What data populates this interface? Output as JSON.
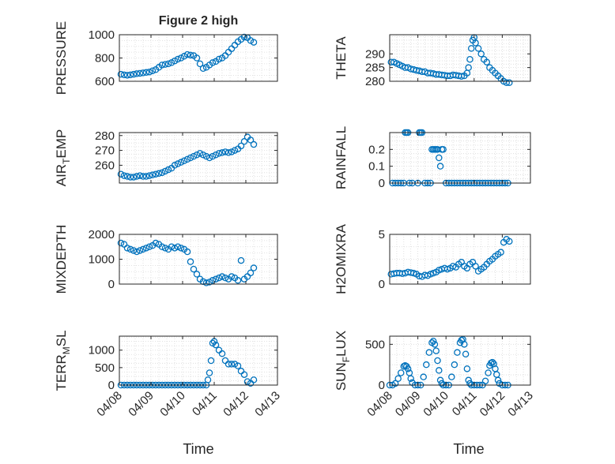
{
  "figure_title": "Figure 2 high",
  "colors": {
    "marker": "#0072BD",
    "axis": "#262626",
    "grid": "#d9d9d9",
    "background": "#ffffff"
  },
  "xaxis": {
    "label": "Time",
    "tick_labels": [
      "04/08",
      "04/09",
      "04/10",
      "04/11",
      "04/12",
      "04/13"
    ],
    "ticks": [
      8,
      9,
      10,
      11,
      12,
      13
    ],
    "range": [
      8,
      13
    ]
  },
  "chart_data": [
    {
      "type": "scatter",
      "title": "Figure 2 high",
      "ylabel": "PRESSURE",
      "ylim": [
        600,
        1000
      ],
      "yticks": [
        600,
        800,
        1000
      ],
      "grid": true,
      "x": [
        8.05,
        8.15,
        8.25,
        8.35,
        8.45,
        8.55,
        8.65,
        8.75,
        8.85,
        8.95,
        9.05,
        9.15,
        9.25,
        9.35,
        9.45,
        9.55,
        9.65,
        9.75,
        9.85,
        9.95,
        10.05,
        10.15,
        10.25,
        10.35,
        10.45,
        10.55,
        10.65,
        10.75,
        10.85,
        10.95,
        11.05,
        11.15,
        11.25,
        11.35,
        11.45,
        11.55,
        11.65,
        11.75,
        11.85,
        11.95,
        12.05,
        12.15,
        12.25
      ],
      "y": [
        660,
        655,
        652,
        655,
        660,
        665,
        668,
        672,
        676,
        680,
        690,
        700,
        720,
        740,
        745,
        750,
        760,
        775,
        790,
        800,
        815,
        830,
        825,
        820,
        800,
        750,
        710,
        720,
        740,
        760,
        770,
        790,
        800,
        820,
        850,
        880,
        910,
        940,
        960,
        980,
        975,
        950,
        935
      ]
    },
    {
      "type": "scatter",
      "ylabel": "THETA",
      "ylim": [
        280,
        297
      ],
      "yticks": [
        280,
        285,
        290
      ],
      "grid": true,
      "x": [
        8.05,
        8.15,
        8.25,
        8.35,
        8.45,
        8.55,
        8.65,
        8.75,
        8.85,
        8.95,
        9.05,
        9.15,
        9.25,
        9.35,
        9.45,
        9.55,
        9.65,
        9.75,
        9.85,
        9.95,
        10.05,
        10.15,
        10.25,
        10.35,
        10.45,
        10.55,
        10.65,
        10.75,
        10.8,
        10.85,
        10.9,
        10.95,
        11.0,
        11.05,
        11.15,
        11.25,
        11.35,
        11.45,
        11.55,
        11.65,
        11.75,
        11.85,
        11.95,
        12.05,
        12.15,
        12.25
      ],
      "y": [
        287,
        287,
        286.5,
        286,
        285.5,
        285,
        285,
        284.5,
        284.3,
        284,
        283.8,
        283.5,
        283.5,
        283,
        283,
        282.8,
        282.5,
        282.5,
        282.3,
        282.2,
        282,
        282,
        282.3,
        282.2,
        282,
        281.8,
        282,
        283,
        285,
        288,
        292,
        295,
        296,
        294,
        292,
        290,
        288,
        287,
        285,
        284,
        283,
        282,
        281,
        280,
        279.5,
        279.5
      ]
    },
    {
      "type": "scatter",
      "ylabel": "AIR_TEMP",
      "ylim": [
        248,
        282
      ],
      "yticks": [
        260,
        270,
        280
      ],
      "grid": true,
      "x": [
        8.05,
        8.15,
        8.25,
        8.35,
        8.45,
        8.55,
        8.65,
        8.75,
        8.85,
        8.95,
        9.05,
        9.15,
        9.25,
        9.35,
        9.45,
        9.55,
        9.65,
        9.75,
        9.85,
        9.95,
        10.05,
        10.15,
        10.25,
        10.35,
        10.45,
        10.55,
        10.65,
        10.75,
        10.85,
        10.95,
        11.05,
        11.15,
        11.25,
        11.35,
        11.45,
        11.55,
        11.65,
        11.75,
        11.85,
        11.95,
        12.05,
        12.15,
        12.25
      ],
      "y": [
        254,
        253,
        252.5,
        252,
        252,
        252.5,
        253,
        252.5,
        252.5,
        253,
        253.5,
        254,
        254.5,
        255,
        256,
        257,
        258,
        260,
        261,
        262,
        263,
        264,
        265,
        266,
        267,
        268,
        267,
        266,
        265,
        266,
        267,
        268,
        268.5,
        269,
        268.5,
        269,
        270,
        271,
        273,
        276,
        279,
        277,
        274
      ]
    },
    {
      "type": "scatter",
      "ylabel": "RAINFALL",
      "ylim": [
        0,
        0.3
      ],
      "yticks": [
        0,
        0.1,
        0.2
      ],
      "grid": true,
      "x": [
        8.1,
        8.2,
        8.3,
        8.4,
        8.5,
        8.55,
        8.6,
        8.65,
        8.7,
        8.8,
        9.0,
        9.05,
        9.1,
        9.15,
        9.25,
        9.35,
        9.45,
        9.5,
        9.55,
        9.6,
        9.65,
        9.7,
        9.75,
        9.8,
        9.85,
        9.9,
        10.0,
        10.1,
        10.2,
        10.3,
        10.4,
        10.5,
        10.6,
        10.7,
        10.8,
        10.9,
        11.0,
        11.1,
        11.2,
        11.3,
        11.4,
        11.5,
        11.6,
        11.7,
        11.8,
        11.9,
        12.0,
        12.1,
        12.2
      ],
      "y": [
        0,
        0,
        0,
        0,
        0,
        0.3,
        0.3,
        0.3,
        0,
        0,
        0,
        0.3,
        0.3,
        0.3,
        0,
        0,
        0,
        0.2,
        0.2,
        0.2,
        0.2,
        0.2,
        0.15,
        0.1,
        0.2,
        0.2,
        0,
        0,
        0,
        0,
        0,
        0,
        0,
        0,
        0,
        0,
        0,
        0,
        0,
        0,
        0,
        0,
        0,
        0,
        0,
        0,
        0,
        0,
        0
      ]
    },
    {
      "type": "scatter",
      "ylabel": "MIXDEPTH",
      "ylim": [
        0,
        2000
      ],
      "yticks": [
        0,
        1000,
        2000
      ],
      "grid": true,
      "x": [
        8.05,
        8.15,
        8.25,
        8.35,
        8.45,
        8.55,
        8.65,
        8.75,
        8.85,
        8.95,
        9.05,
        9.15,
        9.25,
        9.35,
        9.45,
        9.55,
        9.65,
        9.75,
        9.85,
        9.95,
        10.05,
        10.15,
        10.25,
        10.35,
        10.45,
        10.55,
        10.65,
        10.75,
        10.85,
        10.95,
        11.05,
        11.15,
        11.25,
        11.35,
        11.45,
        11.55,
        11.65,
        11.75,
        11.85,
        11.95,
        12.05,
        12.15,
        12.25
      ],
      "y": [
        1650,
        1600,
        1450,
        1400,
        1350,
        1300,
        1350,
        1400,
        1450,
        1500,
        1550,
        1650,
        1600,
        1500,
        1450,
        1400,
        1500,
        1450,
        1500,
        1450,
        1400,
        1300,
        900,
        600,
        400,
        200,
        100,
        50,
        80,
        150,
        200,
        250,
        300,
        250,
        200,
        300,
        250,
        150,
        950,
        200,
        300,
        450,
        650
      ]
    },
    {
      "type": "scatter",
      "ylabel": "H2OMIXRA",
      "ylim": [
        0,
        5
      ],
      "yticks": [
        0,
        5
      ],
      "grid": true,
      "x": [
        8.05,
        8.15,
        8.25,
        8.35,
        8.45,
        8.55,
        8.65,
        8.75,
        8.85,
        8.95,
        9.05,
        9.15,
        9.25,
        9.35,
        9.45,
        9.55,
        9.65,
        9.75,
        9.85,
        9.95,
        10.05,
        10.15,
        10.25,
        10.35,
        10.45,
        10.55,
        10.65,
        10.75,
        10.85,
        10.95,
        11.05,
        11.15,
        11.25,
        11.35,
        11.45,
        11.55,
        11.65,
        11.75,
        11.85,
        11.95,
        12.05,
        12.15,
        12.25
      ],
      "y": [
        1.0,
        1.05,
        1.1,
        1.1,
        1.05,
        1.1,
        1.2,
        1.15,
        1.1,
        1.0,
        0.8,
        0.75,
        0.9,
        0.85,
        1.0,
        1.1,
        1.2,
        1.4,
        1.5,
        1.6,
        1.5,
        1.6,
        1.8,
        1.7,
        2.0,
        2.2,
        1.8,
        1.6,
        2.0,
        2.2,
        1.8,
        1.3,
        1.5,
        1.7,
        2.0,
        2.3,
        2.5,
        2.8,
        3.0,
        3.2,
        4.2,
        4.5,
        4.3
      ]
    },
    {
      "type": "scatter",
      "ylabel": "TERR_MSL",
      "ylim": [
        0,
        1400
      ],
      "yticks": [
        0,
        500,
        1000
      ],
      "grid": true,
      "x": [
        8.05,
        8.15,
        8.25,
        8.35,
        8.45,
        8.55,
        8.65,
        8.75,
        8.85,
        8.95,
        9.05,
        9.15,
        9.25,
        9.35,
        9.45,
        9.55,
        9.65,
        9.75,
        9.85,
        9.95,
        10.05,
        10.15,
        10.25,
        10.35,
        10.45,
        10.55,
        10.65,
        10.75,
        10.8,
        10.85,
        10.9,
        10.95,
        11.0,
        11.05,
        11.15,
        11.25,
        11.35,
        11.45,
        11.55,
        11.65,
        11.75,
        11.85,
        11.95,
        12.05,
        12.15,
        12.25
      ],
      "y": [
        0,
        0,
        0,
        0,
        0,
        0,
        0,
        0,
        0,
        0,
        0,
        0,
        0,
        0,
        0,
        0,
        0,
        0,
        0,
        0,
        0,
        0,
        0,
        0,
        0,
        0,
        0,
        0,
        150,
        350,
        700,
        1200,
        1250,
        1150,
        1000,
        900,
        700,
        600,
        600,
        600,
        550,
        400,
        300,
        100,
        50,
        150
      ]
    },
    {
      "type": "scatter",
      "ylabel": "SUN_FLUX",
      "ylim": [
        0,
        600
      ],
      "yticks": [
        0,
        500
      ],
      "grid": true,
      "x": [
        8.0,
        8.1,
        8.2,
        8.3,
        8.4,
        8.5,
        8.55,
        8.6,
        8.65,
        8.7,
        8.75,
        8.8,
        8.9,
        9.0,
        9.1,
        9.2,
        9.3,
        9.4,
        9.5,
        9.55,
        9.6,
        9.65,
        9.7,
        9.75,
        9.8,
        9.85,
        9.9,
        10.0,
        10.1,
        10.2,
        10.3,
        10.4,
        10.5,
        10.55,
        10.6,
        10.65,
        10.7,
        10.75,
        10.8,
        10.85,
        10.9,
        11.0,
        11.1,
        11.2,
        11.3,
        11.4,
        11.5,
        11.55,
        11.6,
        11.65,
        11.7,
        11.75,
        11.8,
        11.85,
        11.9,
        12.0,
        12.1,
        12.2
      ],
      "y": [
        0,
        0,
        20,
        80,
        150,
        230,
        240,
        230,
        200,
        150,
        80,
        30,
        0,
        0,
        0,
        100,
        250,
        400,
        520,
        540,
        500,
        420,
        300,
        180,
        60,
        20,
        0,
        0,
        0,
        100,
        250,
        400,
        520,
        550,
        560,
        500,
        380,
        200,
        60,
        20,
        0,
        0,
        0,
        0,
        0,
        50,
        150,
        240,
        270,
        280,
        260,
        200,
        130,
        60,
        20,
        0,
        0,
        0
      ]
    }
  ]
}
